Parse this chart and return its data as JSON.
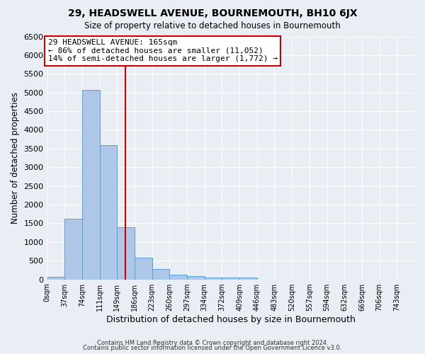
{
  "title": "29, HEADSWELL AVENUE, BOURNEMOUTH, BH10 6JX",
  "subtitle": "Size of property relative to detached houses in Bournemouth",
  "xlabel": "Distribution of detached houses by size in Bournemouth",
  "ylabel": "Number of detached properties",
  "bar_color": "#aec6e8",
  "bar_edge_color": "#5a9fd4",
  "background_color": "#e8eef4",
  "grid_color": "#ffffff",
  "bin_edges": [
    0,
    37,
    74,
    111,
    148,
    185,
    222,
    259,
    296,
    333,
    370,
    407,
    444,
    481,
    518,
    555,
    592,
    629,
    666,
    703,
    740,
    777
  ],
  "bin_labels": [
    "0sqm",
    "37sqm",
    "74sqm",
    "111sqm",
    "149sqm",
    "186sqm",
    "223sqm",
    "260sqm",
    "297sqm",
    "334sqm",
    "372sqm",
    "409sqm",
    "446sqm",
    "483sqm",
    "520sqm",
    "557sqm",
    "594sqm",
    "632sqm",
    "669sqm",
    "706sqm",
    "743sqm"
  ],
  "bar_heights": [
    75,
    1625,
    5075,
    3600,
    1400,
    575,
    280,
    130,
    80,
    55,
    55,
    40,
    0,
    0,
    0,
    0,
    0,
    0,
    0,
    0,
    0
  ],
  "property_size": 165,
  "vline_color": "#cc0000",
  "annotation_line1": "29 HEADSWELL AVENUE: 165sqm",
  "annotation_line2": "← 86% of detached houses are smaller (11,052)",
  "annotation_line3": "14% of semi-detached houses are larger (1,772) →",
  "annotation_box_color": "#ffffff",
  "annotation_box_edgecolor": "#cc0000",
  "ylim": [
    0,
    6500
  ],
  "yticks": [
    0,
    500,
    1000,
    1500,
    2000,
    2500,
    3000,
    3500,
    4000,
    4500,
    5000,
    5500,
    6000,
    6500
  ],
  "footer1": "Contains HM Land Registry data © Crown copyright and database right 2024.",
  "footer2": "Contains public sector information licensed under the Open Government Licence v3.0."
}
